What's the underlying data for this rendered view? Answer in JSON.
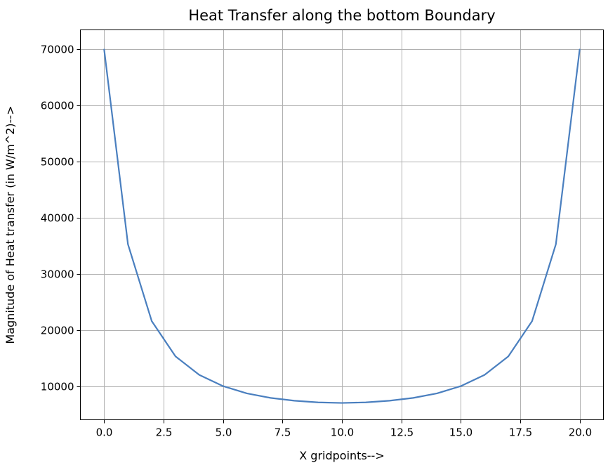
{
  "chart_data": {
    "type": "line",
    "title": "Heat Transfer along the bottom Boundary",
    "xlabel": "X gridpoints-->",
    "ylabel": "Magnitude of Heat transfer (in W/m^2)-->",
    "xlim": [
      -1.0,
      21.0
    ],
    "ylim": [
      4000,
      73500
    ],
    "xticks": [
      0.0,
      2.5,
      5.0,
      7.5,
      10.0,
      12.5,
      15.0,
      17.5,
      20.0
    ],
    "xtick_labels": [
      "0.0",
      "2.5",
      "5.0",
      "7.5",
      "10.0",
      "12.5",
      "15.0",
      "17.5",
      "20.0"
    ],
    "yticks": [
      10000,
      20000,
      30000,
      40000,
      50000,
      60000,
      70000
    ],
    "ytick_labels": [
      "10000",
      "20000",
      "30000",
      "40000",
      "50000",
      "60000",
      "70000"
    ],
    "grid": true,
    "series": [
      {
        "color": "#4a7fbf",
        "x": [
          0,
          1,
          2,
          3,
          4,
          5,
          6,
          7,
          8,
          9,
          10,
          11,
          12,
          13,
          14,
          15,
          16,
          17,
          18,
          19,
          20
        ],
        "y": [
          70000,
          35300,
          21600,
          15300,
          12000,
          10000,
          8700,
          7900,
          7400,
          7100,
          7000,
          7100,
          7400,
          7900,
          8700,
          10000,
          12000,
          15300,
          21600,
          35300,
          70000
        ]
      }
    ]
  }
}
